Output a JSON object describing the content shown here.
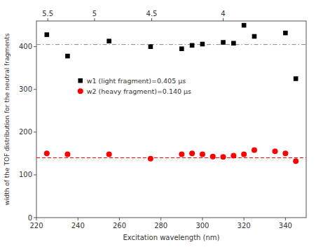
{
  "chart_data": {
    "type": "scatter",
    "xlabel": "Excitation wavelength (nm)",
    "ylabel": "width of the TOF distribution for the neutral fragments",
    "xlim": [
      220,
      350
    ],
    "ylim": [
      0,
      460
    ],
    "xticks": [
      220,
      240,
      260,
      280,
      300,
      320,
      340
    ],
    "yticks": [
      0,
      100,
      200,
      300,
      400
    ],
    "x2lim": [
      220,
      350
    ],
    "x2ticks": [
      {
        "value": 225.45454545454547,
        "label": "5.5"
      },
      {
        "value": 248.0,
        "label": "5"
      },
      {
        "value": 275.55555555555554,
        "label": "4.5"
      },
      {
        "value": 310.0,
        "label": "4"
      }
    ],
    "legend": "left",
    "grid": false,
    "series": [
      {
        "name": "w1 (light fragment)=0.405 μs",
        "type": "scatter",
        "marker": "square",
        "color": "#000000",
        "x": [
          225,
          235,
          255,
          275,
          290,
          295,
          300,
          310,
          315,
          320,
          325,
          340,
          345
        ],
        "values": [
          428,
          378,
          413,
          400,
          395,
          403,
          406,
          410,
          408,
          450,
          424,
          432,
          325
        ]
      },
      {
        "name": "w2 (heavy fragment)=0.140 μs",
        "type": "scatter",
        "marker": "circle",
        "color": "#ff0000",
        "x": [
          225,
          235,
          255,
          275,
          290,
          295,
          300,
          305,
          310,
          315,
          320,
          325,
          335,
          340,
          345
        ],
        "values": [
          150,
          148,
          148,
          138,
          148,
          150,
          148,
          143,
          142,
          145,
          148,
          158,
          155,
          150,
          132
        ]
      },
      {
        "type": "hline",
        "color": "#888888",
        "line_style": "dashdot",
        "values": [
          405
        ]
      },
      {
        "type": "hline",
        "color": "#ff0000",
        "line_style": "dashed",
        "values": [
          140
        ]
      }
    ]
  }
}
